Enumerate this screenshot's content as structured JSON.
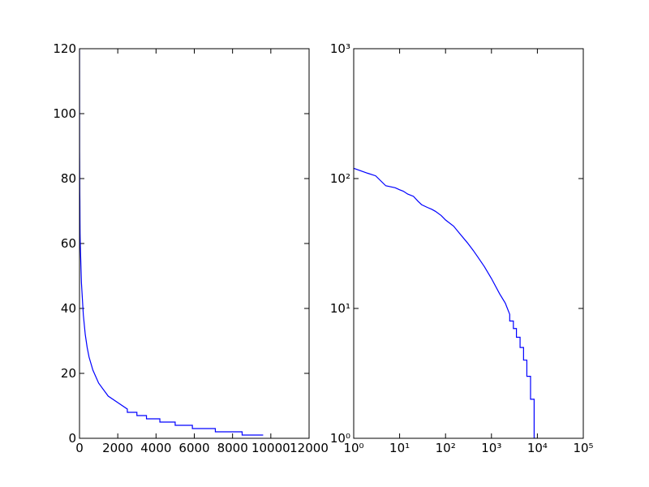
{
  "chart_data": [
    {
      "type": "line",
      "color": "#0000ff",
      "x": [
        1,
        2,
        3,
        5,
        8,
        10,
        12,
        15,
        20,
        25,
        30,
        40,
        50,
        60,
        80,
        100,
        150,
        200,
        300,
        400,
        500,
        700,
        1000,
        1500,
        2000,
        2500,
        2500,
        3000,
        3000,
        3500,
        3500,
        4200,
        4200,
        5000,
        5000,
        5900,
        5900,
        7100,
        7100,
        8500,
        8500,
        9600
      ],
      "values": [
        120,
        110,
        105,
        88,
        85,
        82,
        80,
        76,
        73,
        67,
        63,
        60,
        58,
        56,
        52,
        48,
        43,
        38,
        32,
        28,
        25,
        21,
        17,
        13,
        11,
        9,
        8,
        8,
        7,
        7,
        6,
        6,
        5,
        5,
        4,
        4,
        3,
        3,
        2,
        2,
        1,
        1
      ],
      "xlim": [
        0,
        12000
      ],
      "xticks": [
        0,
        2000,
        4000,
        6000,
        8000,
        10000,
        12000
      ],
      "ylim": [
        0,
        120
      ],
      "yticks": [
        0,
        20,
        40,
        60,
        80,
        100,
        120
      ]
    },
    {
      "type": "line",
      "color": "#0000ff",
      "xscale": "log",
      "yscale": "log",
      "x": [
        1,
        2,
        3,
        5,
        8,
        10,
        12,
        15,
        20,
        25,
        30,
        40,
        50,
        60,
        80,
        100,
        150,
        200,
        300,
        400,
        500,
        700,
        1000,
        1500,
        2000,
        2500,
        2500,
        3000,
        3000,
        3500,
        3500,
        4200,
        4200,
        5000,
        5000,
        5900,
        5900,
        7100,
        7100,
        8500,
        8500,
        9600
      ],
      "values": [
        120,
        110,
        105,
        88,
        85,
        82,
        80,
        76,
        73,
        67,
        63,
        60,
        58,
        56,
        52,
        48,
        43,
        38,
        32,
        28,
        25,
        21,
        17,
        13,
        11,
        9,
        8,
        8,
        7,
        7,
        6,
        6,
        5,
        5,
        4,
        4,
        3,
        3,
        2,
        2,
        1,
        1
      ],
      "xlim": [
        1,
        100000
      ],
      "xticks": [
        {
          "value": 1,
          "label": "10⁰"
        },
        {
          "value": 10,
          "label": "10¹"
        },
        {
          "value": 100,
          "label": "10²"
        },
        {
          "value": 1000,
          "label": "10³"
        },
        {
          "value": 10000,
          "label": "10⁴"
        },
        {
          "value": 100000,
          "label": "10⁵"
        }
      ],
      "ylim": [
        1,
        1000
      ],
      "yticks": [
        {
          "value": 1,
          "label": "10⁰"
        },
        {
          "value": 10,
          "label": "10¹"
        },
        {
          "value": 100,
          "label": "10²"
        },
        {
          "value": 1000,
          "label": "10³"
        }
      ]
    }
  ]
}
